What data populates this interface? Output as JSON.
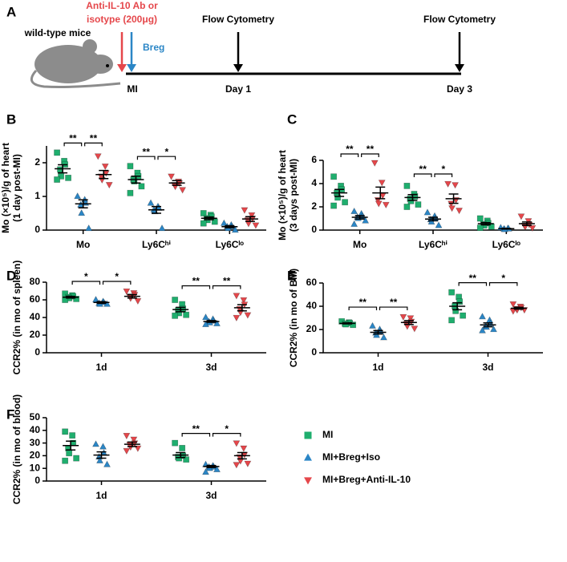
{
  "panel_a": {
    "label": "A",
    "treatment": [
      "Anti-IL-10 Ab or",
      "isotype (200μg)"
    ],
    "breg": "Breg",
    "mice": "wild-type mice",
    "timepoints": [
      {
        "label": "MI"
      },
      {
        "event": "Flow Cytometry",
        "label": "Day 1"
      },
      {
        "event": "Flow Cytometry",
        "label": "Day 3"
      }
    ]
  },
  "chart_data": [
    {
      "type": "dotplot",
      "panel_label": "B",
      "ylabel": [
        "Mo (×10⁵)/g of heart",
        "(1 day post-MI)"
      ],
      "categories": [
        "Mo",
        "Ly6Cʰⁱ",
        "Ly6Cˡᵒ"
      ],
      "ylim": [
        0,
        2.5
      ],
      "yticks": [
        0,
        1,
        2
      ],
      "series": [
        {
          "color": "#1fae6e",
          "marker": "square",
          "values": [
            [
              2.3,
              2.05,
              1.95,
              1.8,
              1.6,
              1.55,
              1.5
            ],
            [
              1.9,
              1.7,
              1.6,
              1.5,
              1.45,
              1.3,
              1.1
            ],
            [
              0.5,
              0.45,
              0.4,
              0.35,
              0.3,
              0.25,
              0.2
            ]
          ],
          "means": [
            1.82,
            1.5,
            0.35
          ],
          "errors": [
            0.12,
            0.1,
            0.04
          ]
        },
        {
          "color": "#2b86c6",
          "marker": "triangle-up",
          "values": [
            [
              1.0,
              0.9,
              0.8,
              0.75,
              0.5,
              0.05
            ],
            [
              0.8,
              0.7,
              0.65,
              0.6,
              0.55,
              0.05
            ],
            [
              0.2,
              0.15,
              0.1,
              0.1,
              0.05,
              0.0
            ]
          ],
          "means": [
            0.78,
            0.6,
            0.1
          ],
          "errors": [
            0.12,
            0.1,
            0.03
          ]
        },
        {
          "color": "#e5474b",
          "marker": "triangle-down",
          "values": [
            [
              2.2,
              1.9,
              1.7,
              1.6,
              1.5,
              1.35
            ],
            [
              1.6,
              1.45,
              1.4,
              1.35,
              1.3,
              1.2
            ],
            [
              0.6,
              0.45,
              0.35,
              0.3,
              0.2,
              0.15
            ]
          ],
          "means": [
            1.65,
            1.4,
            0.33
          ],
          "errors": [
            0.12,
            0.07,
            0.07
          ]
        }
      ],
      "annotations": [
        {
          "text": "**",
          "category": 0,
          "pair": [
            0,
            1
          ]
        },
        {
          "text": "**",
          "category": 0,
          "pair": [
            1,
            2
          ]
        },
        {
          "text": "**",
          "category": 1,
          "pair": [
            0,
            1
          ]
        },
        {
          "text": "*",
          "category": 1,
          "pair": [
            1,
            2
          ]
        }
      ]
    },
    {
      "type": "dotplot",
      "panel_label": "C",
      "ylabel": [
        "Mo (×10⁵)/g of heart",
        "(3 days post-MI)"
      ],
      "categories": [
        "Mo",
        "Ly6Cʰⁱ",
        "Ly6Cˡᵒ"
      ],
      "ylim": [
        0,
        6
      ],
      "yticks": [
        0,
        2,
        4,
        6
      ],
      "series": [
        {
          "color": "#1fae6e",
          "marker": "square",
          "values": [
            [
              4.6,
              3.8,
              3.5,
              3.2,
              2.8,
              2.4,
              2.1
            ],
            [
              3.8,
              3.1,
              2.9,
              2.7,
              2.5,
              2.2,
              2.0
            ],
            [
              1.0,
              0.8,
              0.6,
              0.5,
              0.4,
              0.3,
              0.2
            ]
          ],
          "means": [
            3.2,
            2.8,
            0.55
          ],
          "errors": [
            0.3,
            0.25,
            0.1
          ]
        },
        {
          "color": "#2b86c6",
          "marker": "triangle-up",
          "values": [
            [
              1.6,
              1.4,
              1.2,
              1.1,
              1.0,
              0.8,
              0.5
            ],
            [
              1.5,
              1.2,
              1.0,
              0.9,
              0.7,
              0.4
            ],
            [
              0.2,
              0.15,
              0.1,
              0.1,
              0.05
            ]
          ],
          "means": [
            1.1,
            0.95,
            0.12
          ],
          "errors": [
            0.15,
            0.15,
            0.03
          ]
        },
        {
          "color": "#e5474b",
          "marker": "triangle-down",
          "values": [
            [
              5.8,
              4.1,
              3.0,
              2.6,
              2.3,
              2.2
            ],
            [
              4.0,
              3.9,
              2.6,
              2.3,
              1.9,
              1.7
            ],
            [
              1.2,
              0.8,
              0.5,
              0.4,
              0.3,
              0.2
            ]
          ],
          "means": [
            3.2,
            2.7,
            0.55
          ],
          "errors": [
            0.5,
            0.4,
            0.15
          ]
        }
      ],
      "annotations": [
        {
          "text": "**",
          "category": 0,
          "pair": [
            0,
            1
          ]
        },
        {
          "text": "**",
          "category": 0,
          "pair": [
            1,
            2
          ]
        },
        {
          "text": "**",
          "category": 1,
          "pair": [
            0,
            1
          ]
        },
        {
          "text": "*",
          "category": 1,
          "pair": [
            1,
            2
          ]
        }
      ]
    },
    {
      "type": "dotplot",
      "panel_label": "D",
      "ylabel": [
        "CCR2% (in mo of spleen)"
      ],
      "categories": [
        "1d",
        "3d"
      ],
      "ylim": [
        0,
        80
      ],
      "yticks": [
        0,
        20,
        40,
        60,
        80
      ],
      "series": [
        {
          "color": "#1fae6e",
          "marker": "square",
          "values": [
            [
              67,
              65,
              64,
              63,
              62,
              61,
              60
            ],
            [
              60,
              55,
              50,
              48,
              45,
              43,
              42
            ]
          ],
          "means": [
            63,
            49
          ],
          "errors": [
            1,
            2.5
          ]
        },
        {
          "color": "#2b86c6",
          "marker": "triangle-up",
          "values": [
            [
              60,
              58,
              57,
              56,
              55,
              55
            ],
            [
              40,
              38,
              36,
              35,
              34,
              33,
              32
            ]
          ],
          "means": [
            57,
            35.5
          ],
          "errors": [
            1,
            1
          ]
        },
        {
          "color": "#e5474b",
          "marker": "triangle-down",
          "values": [
            [
              70,
              68,
              66,
              64,
              62,
              59
            ],
            [
              65,
              60,
              55,
              50,
              46,
              43,
              40
            ]
          ],
          "means": [
            64,
            51
          ],
          "errors": [
            2,
            3.5
          ]
        }
      ],
      "annotations": [
        {
          "text": "*",
          "category": 0,
          "pair": [
            0,
            1
          ]
        },
        {
          "text": "*",
          "category": 0,
          "pair": [
            1,
            2
          ]
        },
        {
          "text": "**",
          "category": 1,
          "pair": [
            0,
            1
          ]
        },
        {
          "text": "**",
          "category": 1,
          "pair": [
            1,
            2
          ]
        }
      ]
    },
    {
      "type": "dotplot",
      "panel_label": "E",
      "ylabel": [
        "CCR2% (in mo of BM)"
      ],
      "categories": [
        "1d",
        "3d"
      ],
      "ylim": [
        0,
        60
      ],
      "yticks": [
        0,
        20,
        40,
        60
      ],
      "series": [
        {
          "color": "#1fae6e",
          "marker": "square",
          "values": [
            [
              27,
              26,
              25.5,
              25,
              24.5,
              24
            ],
            [
              52,
              48,
              44,
              40,
              36,
              32,
              28
            ]
          ],
          "means": [
            25.3,
            40
          ],
          "errors": [
            0.5,
            3
          ]
        },
        {
          "color": "#2b86c6",
          "marker": "triangle-up",
          "values": [
            [
              23,
              20,
              18,
              17,
              15,
              13
            ],
            [
              31,
              28,
              25,
              23,
              22,
              20,
              19
            ]
          ],
          "means": [
            17.6,
            24
          ],
          "errors": [
            1.5,
            1.7
          ]
        },
        {
          "color": "#e5474b",
          "marker": "triangle-down",
          "values": [
            [
              31,
              30,
              27,
              25,
              23,
              21
            ],
            [
              42,
              40,
              39,
              38,
              37,
              37,
              36
            ]
          ],
          "means": [
            26,
            38.3
          ],
          "errors": [
            1.7,
            0.8
          ]
        }
      ],
      "annotations": [
        {
          "text": "**",
          "category": 0,
          "pair": [
            0,
            1
          ]
        },
        {
          "text": "**",
          "category": 0,
          "pair": [
            1,
            2
          ]
        },
        {
          "text": "**",
          "category": 1,
          "pair": [
            0,
            1
          ]
        },
        {
          "text": "*",
          "category": 1,
          "pair": [
            1,
            2
          ]
        }
      ]
    },
    {
      "type": "dotplot",
      "panel_label": "F",
      "ylabel": [
        "CCR2% (in mo of blood)"
      ],
      "categories": [
        "1d",
        "3d"
      ],
      "ylim": [
        0,
        50
      ],
      "yticks": [
        0,
        10,
        20,
        30,
        40,
        50
      ],
      "legend": "right",
      "series": [
        {
          "name": "MI",
          "color": "#1fae6e",
          "marker": "square",
          "values": [
            [
              39,
              36,
              30,
              26,
              22,
              18,
              16
            ],
            [
              30,
              26,
              20,
              19,
              18,
              17
            ]
          ],
          "means": [
            28,
            20.5
          ],
          "errors": [
            3.5,
            2
          ]
        },
        {
          "name": "MI+Breg+Iso",
          "color": "#2b86c6",
          "marker": "triangle-up",
          "values": [
            [
              29,
              27,
              22,
              19,
              16,
              13
            ],
            [
              13,
              12,
              11,
              11,
              10,
              9,
              7
            ]
          ],
          "means": [
            20.5,
            11.5
          ],
          "errors": [
            2.5,
            0.8
          ]
        },
        {
          "name": "MI+Breg+Anti-IL-10",
          "color": "#e5474b",
          "marker": "triangle-down",
          "values": [
            [
              36,
              33,
              30,
              29,
              27,
              26,
              24
            ],
            [
              30,
              26,
              21,
              19,
              16,
              14,
              13
            ]
          ],
          "means": [
            29,
            20
          ],
          "errors": [
            1.8,
            2.5
          ]
        }
      ],
      "annotations": [
        {
          "text": "**",
          "category": 1,
          "pair": [
            0,
            1
          ]
        },
        {
          "text": "*",
          "category": 1,
          "pair": [
            1,
            2
          ]
        }
      ]
    }
  ]
}
